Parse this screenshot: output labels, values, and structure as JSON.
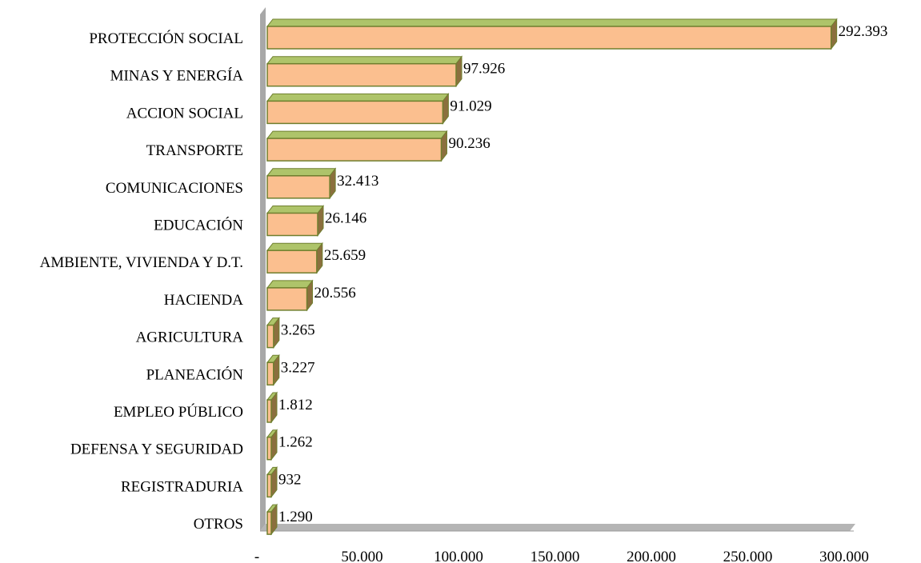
{
  "colors": {
    "bar_front": "#fbbf8f",
    "bar_side": "#8b6f3e",
    "bar_top": "#aec46a",
    "bar_edge": "#6f7f2e",
    "axis_wall": "#a8a8a8",
    "axis_floor": "#b5b5b5"
  },
  "chart_data": {
    "type": "bar",
    "orientation": "horizontal",
    "style": "3d",
    "title": "",
    "xlabel": "",
    "ylabel": "",
    "xlim": [
      0,
      300000
    ],
    "x_ticks": [
      0,
      50000,
      100000,
      150000,
      200000,
      250000,
      300000
    ],
    "x_tick_labels": [
      "-",
      "50.000",
      "100.000",
      "150.000",
      "200.000",
      "250.000",
      "300.000"
    ],
    "grid": false,
    "legend": "none",
    "categories": [
      "PROTECCIÓN SOCIAL",
      "MINAS Y ENERGÍA",
      "ACCION SOCIAL",
      "TRANSPORTE",
      "COMUNICACIONES",
      "EDUCACIÓN",
      "AMBIENTE, VIVIENDA Y D.T.",
      "HACIENDA",
      "AGRICULTURA",
      "PLANEACIÓN",
      "EMPLEO PÚBLICO",
      "DEFENSA Y SEGURIDAD",
      "REGISTRADURIA",
      "OTROS"
    ],
    "values": [
      292393,
      97926,
      91029,
      90236,
      32413,
      26146,
      25659,
      20556,
      3265,
      3227,
      1812,
      1262,
      932,
      1290
    ],
    "value_labels": [
      "292.393",
      "97.926",
      "91.029",
      "90.236",
      "32.413",
      "26.146",
      "25.659",
      "20.556",
      "3.265",
      "3.227",
      "1.812",
      "1.262",
      "932",
      "1.290"
    ]
  }
}
